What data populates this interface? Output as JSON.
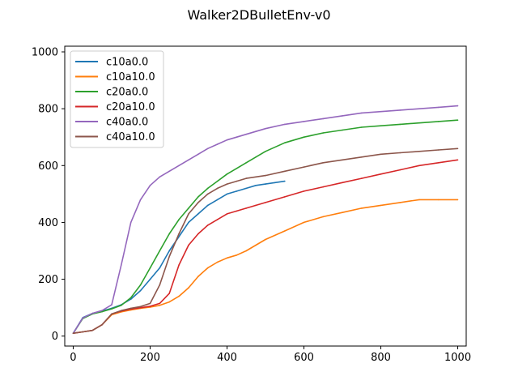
{
  "chart_data": {
    "type": "line",
    "title": "Walker2DBulletEnv-v0",
    "xlabel": "",
    "ylabel": "",
    "xlim": [
      -22,
      1022
    ],
    "ylim": [
      -35,
      1020
    ],
    "xticks": [
      0,
      200,
      400,
      600,
      800,
      1000
    ],
    "yticks": [
      0,
      200,
      400,
      600,
      800,
      1000
    ],
    "xtick_labels": [
      "0",
      "200",
      "400",
      "600",
      "800",
      "1000"
    ],
    "ytick_labels": [
      "0",
      "200",
      "400",
      "600",
      "800",
      "1000"
    ],
    "grid": false,
    "legend_position": "top-left",
    "series": [
      {
        "name": "c10a0.0",
        "color": "#1f77b4",
        "x": [
          0,
          25,
          50,
          75,
          100,
          125,
          150,
          175,
          200,
          225,
          250,
          275,
          300,
          325,
          350,
          375,
          400,
          425,
          450,
          475,
          500,
          525,
          550
        ],
        "y": [
          10,
          65,
          80,
          88,
          98,
          110,
          130,
          160,
          200,
          240,
          300,
          350,
          400,
          430,
          460,
          480,
          500,
          510,
          520,
          530,
          535,
          540,
          545
        ]
      },
      {
        "name": "c10a10.0",
        "color": "#ff7f0e",
        "x": [
          0,
          25,
          50,
          75,
          100,
          125,
          150,
          175,
          200,
          225,
          250,
          275,
          300,
          325,
          350,
          375,
          400,
          425,
          450,
          475,
          500,
          550,
          600,
          650,
          700,
          750,
          800,
          850,
          900,
          950,
          1000
        ],
        "y": [
          10,
          15,
          20,
          40,
          75,
          85,
          92,
          98,
          102,
          108,
          120,
          140,
          170,
          210,
          240,
          260,
          275,
          285,
          300,
          320,
          340,
          370,
          400,
          420,
          435,
          450,
          460,
          470,
          480,
          480,
          480
        ]
      },
      {
        "name": "c20a0.0",
        "color": "#2ca02c",
        "x": [
          0,
          25,
          50,
          75,
          100,
          125,
          150,
          175,
          200,
          225,
          250,
          275,
          300,
          325,
          350,
          375,
          400,
          425,
          450,
          475,
          500,
          550,
          600,
          650,
          700,
          750,
          800,
          850,
          900,
          950,
          1000
        ],
        "y": [
          10,
          62,
          78,
          86,
          96,
          108,
          135,
          180,
          240,
          300,
          360,
          410,
          450,
          490,
          520,
          545,
          570,
          590,
          610,
          630,
          650,
          680,
          700,
          715,
          725,
          735,
          740,
          745,
          750,
          755,
          760
        ]
      },
      {
        "name": "c20a10.0",
        "color": "#d62728",
        "x": [
          0,
          25,
          50,
          75,
          100,
          125,
          150,
          175,
          200,
          225,
          250,
          275,
          300,
          325,
          350,
          375,
          400,
          425,
          450,
          475,
          500,
          550,
          600,
          650,
          700,
          750,
          800,
          850,
          900,
          950,
          1000
        ],
        "y": [
          10,
          15,
          20,
          40,
          78,
          88,
          95,
          100,
          105,
          115,
          150,
          250,
          320,
          360,
          390,
          410,
          430,
          440,
          450,
          460,
          470,
          490,
          510,
          525,
          540,
          555,
          570,
          585,
          600,
          610,
          620
        ]
      },
      {
        "name": "c40a0.0",
        "color": "#9467bd",
        "x": [
          0,
          25,
          50,
          75,
          100,
          125,
          150,
          175,
          200,
          225,
          250,
          275,
          300,
          325,
          350,
          375,
          400,
          425,
          450,
          475,
          500,
          550,
          600,
          650,
          700,
          750,
          800,
          850,
          900,
          950,
          1000
        ],
        "y": [
          10,
          64,
          80,
          90,
          110,
          250,
          400,
          480,
          530,
          560,
          580,
          600,
          620,
          640,
          660,
          675,
          690,
          700,
          710,
          720,
          730,
          745,
          755,
          765,
          775,
          785,
          790,
          795,
          800,
          805,
          810
        ]
      },
      {
        "name": "c40a10.0",
        "color": "#8c564b",
        "x": [
          0,
          25,
          50,
          75,
          100,
          125,
          150,
          175,
          200,
          225,
          250,
          275,
          300,
          325,
          350,
          375,
          400,
          425,
          450,
          475,
          500,
          550,
          600,
          650,
          700,
          750,
          800,
          850,
          900,
          950,
          1000
        ],
        "y": [
          10,
          15,
          20,
          40,
          78,
          90,
          98,
          104,
          115,
          180,
          280,
          360,
          430,
          470,
          500,
          520,
          535,
          545,
          555,
          560,
          565,
          580,
          595,
          610,
          620,
          630,
          640,
          645,
          650,
          655,
          660
        ]
      }
    ]
  }
}
